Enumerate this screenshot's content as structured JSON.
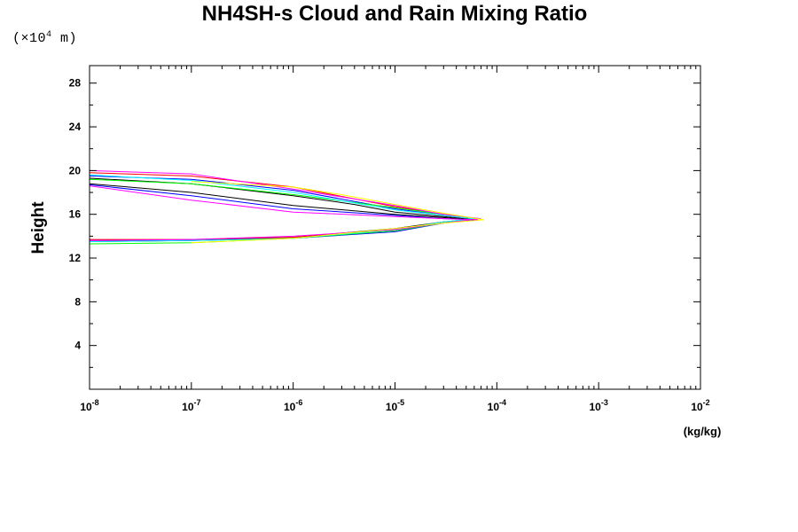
{
  "chart_data": {
    "type": "line",
    "title": "NH4SH-s Cloud and Rain Mixing Ratio",
    "scale_note": {
      "prefix": "(×10",
      "exponent": "4",
      "suffix": " m)"
    },
    "xlabel": "(kg/kg)",
    "ylabel": "Height",
    "xscale": "log",
    "xlim": [
      1e-08,
      0.01
    ],
    "ylim": [
      0,
      29.6
    ],
    "x_ticks": [
      {
        "mant": "10",
        "exp": "-8",
        "value": 1e-08
      },
      {
        "mant": "10",
        "exp": "-7",
        "value": 1e-07
      },
      {
        "mant": "10",
        "exp": "-6",
        "value": 1e-06
      },
      {
        "mant": "10",
        "exp": "-5",
        "value": 1e-05
      },
      {
        "mant": "10",
        "exp": "-4",
        "value": 0.0001
      },
      {
        "mant": "10",
        "exp": "-3",
        "value": 0.001
      },
      {
        "mant": "10",
        "exp": "-2",
        "value": 0.01
      }
    ],
    "y_ticks": [
      "4",
      "8",
      "12",
      "16",
      "20",
      "24",
      "28"
    ],
    "grid": false,
    "legend": "none",
    "series": [
      {
        "color": "#000000",
        "points": [
          [
            1e-08,
            19.3
          ],
          [
            1e-07,
            18.8
          ],
          [
            1e-06,
            17.7
          ],
          [
            4e-06,
            16.9
          ],
          [
            1e-05,
            16.2
          ],
          [
            3e-05,
            15.8
          ],
          [
            6e-05,
            15.5
          ],
          [
            3e-05,
            15.3
          ],
          [
            1e-05,
            14.7
          ],
          [
            1e-06,
            13.9
          ],
          [
            1e-07,
            13.6
          ],
          [
            1e-08,
            13.5
          ]
        ]
      },
      {
        "color": "#ff0000",
        "points": [
          [
            1e-08,
            19.8
          ],
          [
            1e-07,
            19.5
          ],
          [
            1e-06,
            18.5
          ],
          [
            1e-05,
            16.7
          ],
          [
            3e-05,
            16.0
          ],
          [
            6.5e-05,
            15.6
          ],
          [
            3e-05,
            15.3
          ],
          [
            1e-05,
            14.6
          ],
          [
            1e-06,
            13.9
          ],
          [
            1e-07,
            13.7
          ],
          [
            1e-08,
            13.7
          ]
        ]
      },
      {
        "color": "#0000ff",
        "points": [
          [
            1e-08,
            19.5
          ],
          [
            1e-07,
            19.2
          ],
          [
            1e-06,
            18.2
          ],
          [
            1e-05,
            16.5
          ],
          [
            3e-05,
            15.9
          ],
          [
            6e-05,
            15.6
          ],
          [
            3e-05,
            15.2
          ],
          [
            1e-05,
            14.4
          ],
          [
            1e-06,
            13.8
          ],
          [
            1e-07,
            13.6
          ],
          [
            1e-08,
            13.6
          ]
        ]
      },
      {
        "color": "#00ff00",
        "points": [
          [
            1e-08,
            19.2
          ],
          [
            1e-07,
            18.8
          ],
          [
            1e-06,
            17.8
          ],
          [
            1e-05,
            16.6
          ],
          [
            3e-05,
            16.0
          ],
          [
            6.5e-05,
            15.6
          ],
          [
            3e-05,
            15.2
          ],
          [
            1e-05,
            14.5
          ],
          [
            1e-06,
            13.8
          ],
          [
            1e-07,
            13.4
          ],
          [
            1e-08,
            13.3
          ]
        ]
      },
      {
        "color": "#00ffff",
        "points": [
          [
            1e-08,
            19.6
          ],
          [
            1e-07,
            19.1
          ],
          [
            1e-06,
            18.0
          ],
          [
            1e-05,
            16.4
          ],
          [
            3e-05,
            15.9
          ],
          [
            6e-05,
            15.6
          ],
          [
            3e-05,
            15.3
          ],
          [
            1e-05,
            14.6
          ],
          [
            1e-06,
            13.8
          ],
          [
            1e-07,
            13.6
          ],
          [
            1e-08,
            13.5
          ]
        ]
      },
      {
        "color": "#ff00ff",
        "points": [
          [
            1e-08,
            20.0
          ],
          [
            1e-07,
            19.7
          ],
          [
            1e-06,
            18.3
          ],
          [
            1e-05,
            16.8
          ],
          [
            3e-05,
            16.0
          ],
          [
            7e-05,
            15.6
          ],
          [
            3e-05,
            15.2
          ],
          [
            1e-05,
            14.6
          ],
          [
            1e-06,
            14.0
          ],
          [
            1e-07,
            13.7
          ],
          [
            1e-08,
            13.6
          ]
        ]
      },
      {
        "color": "#ffff00",
        "points": [
          [
            1e-07,
            19.0
          ],
          [
            1e-06,
            18.5
          ],
          [
            3e-06,
            17.8
          ],
          [
            1e-05,
            16.9
          ],
          [
            3e-05,
            16.1
          ],
          [
            7.5e-05,
            15.5
          ],
          [
            3e-05,
            15.2
          ],
          [
            1e-05,
            14.7
          ],
          [
            1e-06,
            13.8
          ],
          [
            1e-07,
            13.4
          ]
        ]
      },
      {
        "color": "#000000",
        "points": [
          [
            1e-08,
            18.8
          ],
          [
            1e-07,
            18.0
          ],
          [
            1e-06,
            16.8
          ],
          [
            1e-05,
            16.0
          ],
          [
            3e-05,
            15.7
          ],
          [
            6e-05,
            15.5
          ]
        ]
      },
      {
        "color": "#0000ff",
        "points": [
          [
            1e-08,
            18.7
          ],
          [
            1e-07,
            17.7
          ],
          [
            1e-06,
            16.5
          ],
          [
            1e-05,
            15.9
          ],
          [
            3e-05,
            15.6
          ],
          [
            6e-05,
            15.5
          ]
        ]
      },
      {
        "color": "#ff00ff",
        "points": [
          [
            1e-08,
            18.6
          ],
          [
            1e-07,
            17.3
          ],
          [
            1e-06,
            16.2
          ],
          [
            1e-05,
            15.8
          ],
          [
            3e-05,
            15.6
          ],
          [
            6.5e-05,
            15.5
          ]
        ]
      }
    ]
  }
}
